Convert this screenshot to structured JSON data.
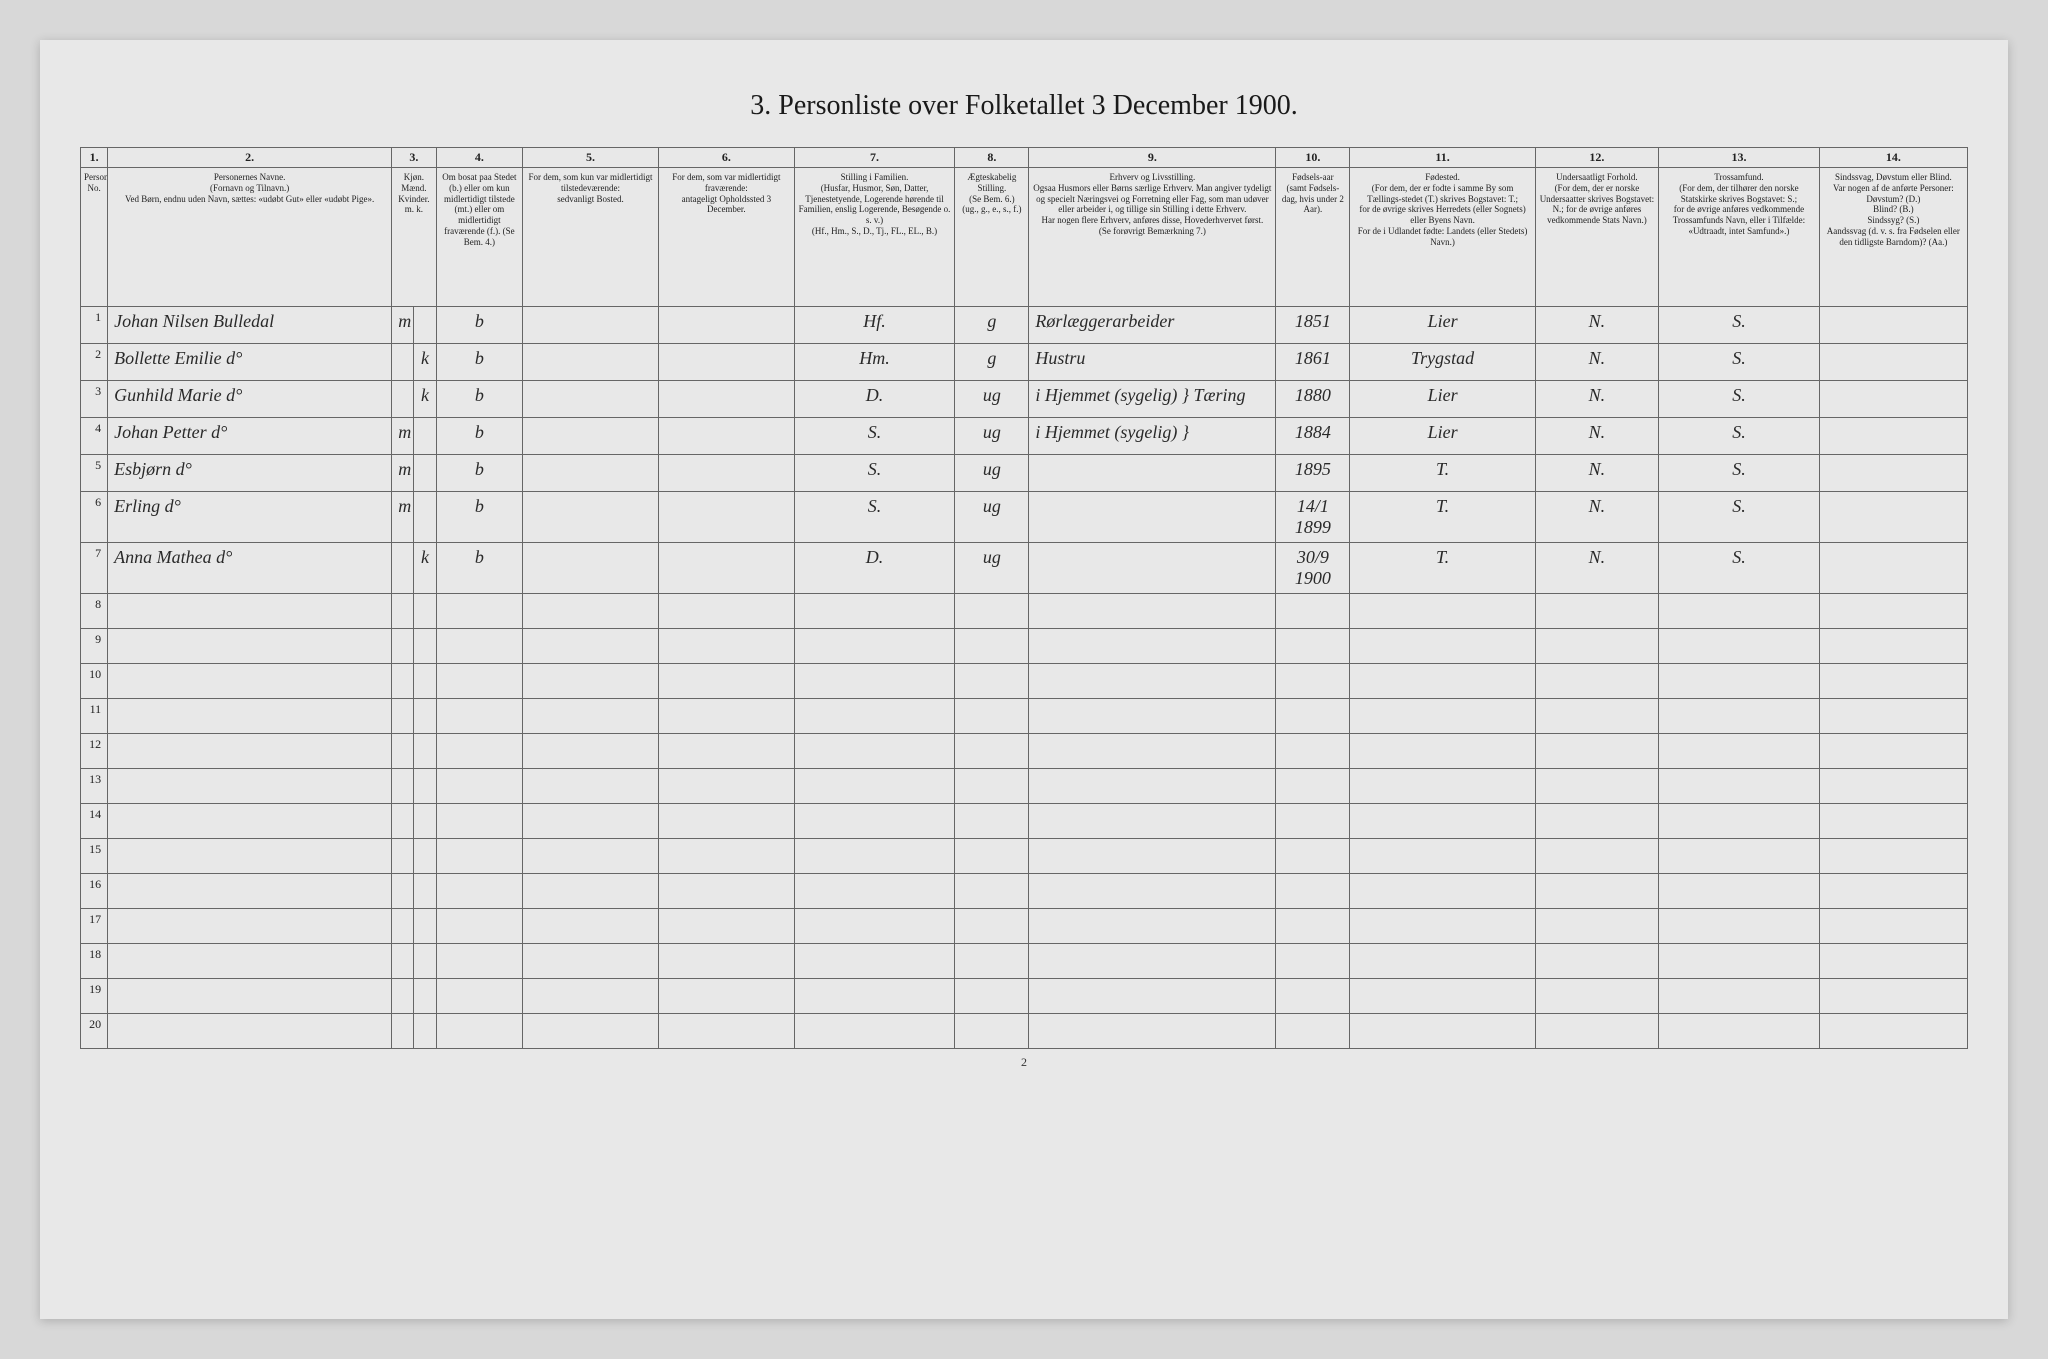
{
  "title": "3. Personliste over Folketallet 3 December 1900.",
  "column_numbers": [
    "1.",
    "2.",
    "3.",
    "4.",
    "5.",
    "6.",
    "7.",
    "8.",
    "9.",
    "10.",
    "11.",
    "12.",
    "13.",
    "14."
  ],
  "column_widths": [
    "22px",
    "230px",
    "18px",
    "18px",
    "70px",
    "110px",
    "110px",
    "130px",
    "60px",
    "200px",
    "60px",
    "150px",
    "100px",
    "130px",
    "120px"
  ],
  "headers": {
    "col1": "Personernes No.",
    "col2": "Personernes Navne.\n(Fornavn og Tilnavn.)\nVed Børn, endnu uden Navn, sættes: «udøbt Gut» eller «udøbt Pige».",
    "col3": "Kjøn.\nMænd.\nKvinder.\nm. k.",
    "col4": "Om bosat paa Stedet (b.) eller om kun midlertidigt tilstede (mt.) eller om midlertidigt fraværende (f.). (Se Bem. 4.)",
    "col5": "For dem, som kun var midlertidigt tilstedeværende:\nsedvanligt Bosted.",
    "col6": "For dem, som var midlertidigt fraværende:\nantageligt Opholdssted 3 December.",
    "col7": "Stilling i Familien.\n(Husfar, Husmor, Søn, Datter, Tjenestetyende, Logerende hørende til Familien, enslig Logerende, Besøgende o. s. v.)\n(Hf., Hm., S., D., Tj., FL., EL., B.)",
    "col8": "Ægteskabelig Stilling.\n(Se Bem. 6.)\n(ug., g., e., s., f.)",
    "col9": "Erhverv og Livsstilling.\nOgsaa Husmors eller Børns særlige Erhverv. Man angiver tydeligt og specielt Næringsvei og Forretning eller Fag, som man udøver eller arbeider i, og tillige sin Stilling i dette Erhverv.\nHar nogen flere Erhverv, anføres disse, Hovederhvervet først.\n(Se forøvrigt Bemærkning 7.)",
    "col10": "Fødsels-aar\n(samt Fødsels-dag, hvis under 2 Aar).",
    "col11": "Fødested.\n(For dem, der er fodte i samme By som Tællings-stedet (T.) skrives Bogstavet: T.;\nfor de øvrige skrives Herredets (eller Sognets) eller Byens Navn.\nFor de i Udlandet fødte: Landets (eller Stedets) Navn.)",
    "col12": "Undersaatligt Forhold.\n(For dem, der er norske Undersaatter skrives Bogstavet: N.; for de øvrige anføres vedkommende Stats Navn.)",
    "col13": "Trossamfund.\n(For dem, der tilhører den norske Statskirke skrives Bogstavet: S.;\nfor de øvrige anføres vedkommende Trossamfunds Navn, eller i Tilfælde: «Udtraadt, intet Samfund».)",
    "col14": "Sindssvag, Døvstum eller Blind.\nVar nogen af de anførte Personer:\nDøvstum? (D.)\nBlind? (B.)\nSindssyg? (S.)\nAandssvag (d. v. s. fra Fødselen eller den tidligste Barndom)? (Aa.)"
  },
  "rows": [
    {
      "n": "1",
      "name": "Johan Nilsen Bulledal",
      "sex_m": "m",
      "sex_k": "",
      "res": "b",
      "c5": "",
      "c6": "",
      "fam": "Hf.",
      "civ": "g",
      "occ": "Rørlæggerarbeider",
      "year": "1851",
      "birthplace": "Lier",
      "nat": "N.",
      "rel": "S.",
      "dis": ""
    },
    {
      "n": "2",
      "name": "Bollette Emilie   d°",
      "sex_m": "",
      "sex_k": "k",
      "res": "b",
      "c5": "",
      "c6": "",
      "fam": "Hm.",
      "civ": "g",
      "occ": "Hustru",
      "year": "1861",
      "birthplace": "Trygstad",
      "nat": "N.",
      "rel": "S.",
      "dis": ""
    },
    {
      "n": "3",
      "name": "Gunhild Marie   d°",
      "sex_m": "",
      "sex_k": "k",
      "res": "b",
      "c5": "",
      "c6": "",
      "fam": "D.",
      "civ": "ug",
      "occ": "i Hjemmet (sygelig) } Tæring",
      "year": "1880",
      "birthplace": "Lier",
      "nat": "N.",
      "rel": "S.",
      "dis": ""
    },
    {
      "n": "4",
      "name": "Johan Petter   d°",
      "sex_m": "m",
      "sex_k": "",
      "res": "b",
      "c5": "",
      "c6": "",
      "fam": "S.",
      "civ": "ug",
      "occ": "i Hjemmet (sygelig) }",
      "year": "1884",
      "birthplace": "Lier",
      "nat": "N.",
      "rel": "S.",
      "dis": ""
    },
    {
      "n": "5",
      "name": "Esbjørn   d°",
      "sex_m": "m",
      "sex_k": "",
      "res": "b",
      "c5": "",
      "c6": "",
      "fam": "S.",
      "civ": "ug",
      "occ": "",
      "year": "1895",
      "birthplace": "T.",
      "nat": "N.",
      "rel": "S.",
      "dis": ""
    },
    {
      "n": "6",
      "name": "Erling   d°",
      "sex_m": "m",
      "sex_k": "",
      "res": "b",
      "c5": "",
      "c6": "",
      "fam": "S.",
      "civ": "ug",
      "occ": "",
      "year": "14/1 1899",
      "birthplace": "T.",
      "nat": "N.",
      "rel": "S.",
      "dis": ""
    },
    {
      "n": "7",
      "name": "Anna Mathea   d°",
      "sex_m": "",
      "sex_k": "k",
      "res": "b",
      "c5": "",
      "c6": "",
      "fam": "D.",
      "civ": "ug",
      "occ": "",
      "year": "30/9 1900",
      "birthplace": "T.",
      "nat": "N.",
      "rel": "S.",
      "dis": ""
    }
  ],
  "empty_rows": [
    "8",
    "9",
    "10",
    "11",
    "12",
    "13",
    "14",
    "15",
    "16",
    "17",
    "18",
    "19",
    "20"
  ],
  "page_number": "2",
  "styling": {
    "bg_color": "#d8d8d8",
    "page_color": "#e8e8e8",
    "border_color": "#666666",
    "text_color": "#1a1a1a",
    "hand_color": "#2a2a2a",
    "title_fontsize": 28,
    "header_fontsize": 9,
    "cell_fontsize": 11,
    "hand_fontsize": 18
  }
}
